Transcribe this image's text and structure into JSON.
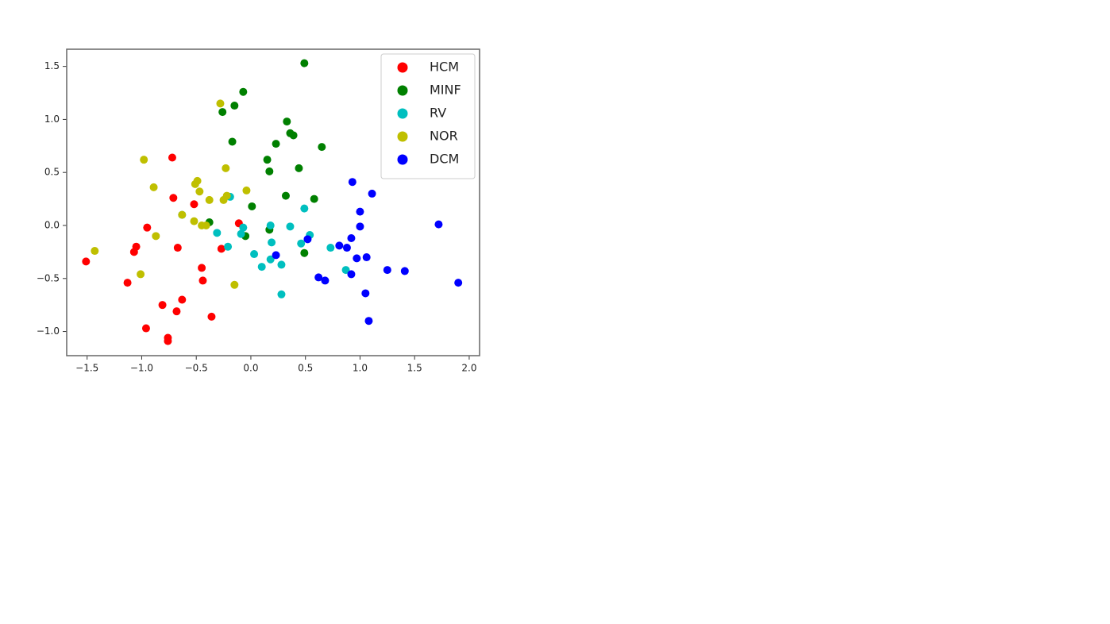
{
  "chart_data": {
    "type": "scatter",
    "xlim": [
      -1.687,
      2.095
    ],
    "ylim": [
      -1.228,
      1.662
    ],
    "xticks": [
      {
        "value": -1.5,
        "label": "−1.5"
      },
      {
        "value": -1.0,
        "label": "−1.0"
      },
      {
        "value": -0.5,
        "label": "−0.5"
      },
      {
        "value": 0,
        "label": "0.0"
      },
      0.5,
      {
        "value": 1,
        "label": "1.0"
      },
      1.5,
      {
        "value": 2,
        "label": "2.0"
      }
    ],
    "yticks": [
      {
        "value": -1.0,
        "label": "−1.0"
      },
      {
        "value": -0.5,
        "label": "−0.5"
      },
      {
        "value": 0,
        "label": "0.0"
      },
      0.5,
      {
        "value": 1,
        "label": "1.0"
      },
      1.5
    ],
    "legend": "upper right",
    "series": [
      {
        "name": "HCM",
        "color": "#ff0000",
        "x": [
          -1.51,
          -1.13,
          -1.07,
          -1.05,
          -0.95,
          -0.96,
          -0.81,
          -0.76,
          -0.76,
          -0.72,
          -0.71,
          -0.68,
          -0.67,
          -0.63,
          -0.52,
          -0.45,
          -0.44,
          -0.36,
          -0.27,
          -0.11
        ],
        "values": [
          -0.34,
          -0.54,
          -0.25,
          -0.2,
          -0.02,
          -0.97,
          -0.75,
          -1.06,
          -1.09,
          0.64,
          0.26,
          -0.81,
          -0.21,
          -0.7,
          0.2,
          -0.4,
          -0.52,
          -0.86,
          -0.22,
          0.02
        ]
      },
      {
        "name": "MINF",
        "color": "#008000",
        "x": [
          0.49,
          -0.07,
          -0.15,
          -0.26,
          0.33,
          0.36,
          0.39,
          -0.17,
          0.23,
          0.65,
          0.15,
          0.17,
          0.44,
          0.32,
          0.58,
          0.01,
          -0.38,
          0.17,
          -0.05,
          0.49
        ],
        "values": [
          1.53,
          1.26,
          1.13,
          1.07,
          0.98,
          0.87,
          0.85,
          0.79,
          0.77,
          0.74,
          0.62,
          0.51,
          0.54,
          0.28,
          0.25,
          0.18,
          0.03,
          -0.04,
          -0.1,
          -0.26
        ]
      },
      {
        "name": "RV",
        "color": "#00bfbf",
        "x": [
          -0.63,
          -0.19,
          -0.31,
          -0.21,
          -0.07,
          -0.09,
          0.03,
          0.1,
          0.18,
          0.19,
          0.18,
          0.28,
          0.28,
          0.36,
          0.49,
          0.46,
          0.54,
          0.73,
          0.87
        ],
        "values": [
          0.1,
          0.27,
          -0.07,
          -0.2,
          -0.02,
          -0.08,
          -0.27,
          -0.39,
          0.0,
          -0.16,
          -0.32,
          -0.37,
          -0.65,
          -0.01,
          0.16,
          -0.17,
          -0.09,
          -0.21,
          -0.42
        ]
      },
      {
        "name": "NOR",
        "color": "#bfbf00",
        "x": [
          -0.28,
          -0.98,
          -0.89,
          -0.87,
          -1.43,
          -1.01,
          -0.63,
          -0.49,
          -0.51,
          -0.47,
          -0.23,
          -0.38,
          -0.25,
          -0.22,
          -0.04,
          -0.52,
          -0.45,
          -0.41,
          -0.15
        ],
        "values": [
          1.15,
          0.62,
          0.36,
          -0.1,
          -0.24,
          -0.46,
          0.1,
          0.42,
          0.39,
          0.32,
          0.54,
          0.24,
          0.24,
          0.28,
          0.33,
          0.04,
          0.0,
          0.0,
          -0.56
        ]
      },
      {
        "name": "DCM",
        "color": "#0000ff",
        "x": [
          0.93,
          1.11,
          1.0,
          1.0,
          1.72,
          0.92,
          0.81,
          0.88,
          0.97,
          1.06,
          0.92,
          1.25,
          1.41,
          0.52,
          0.23,
          0.62,
          0.68,
          1.05,
          1.08,
          1.9
        ],
        "values": [
          0.41,
          0.3,
          0.13,
          -0.01,
          0.01,
          -0.12,
          -0.19,
          -0.21,
          -0.31,
          -0.3,
          -0.46,
          -0.42,
          -0.43,
          -0.13,
          -0.28,
          -0.49,
          -0.52,
          -0.64,
          -0.9,
          -0.54
        ]
      }
    ]
  }
}
